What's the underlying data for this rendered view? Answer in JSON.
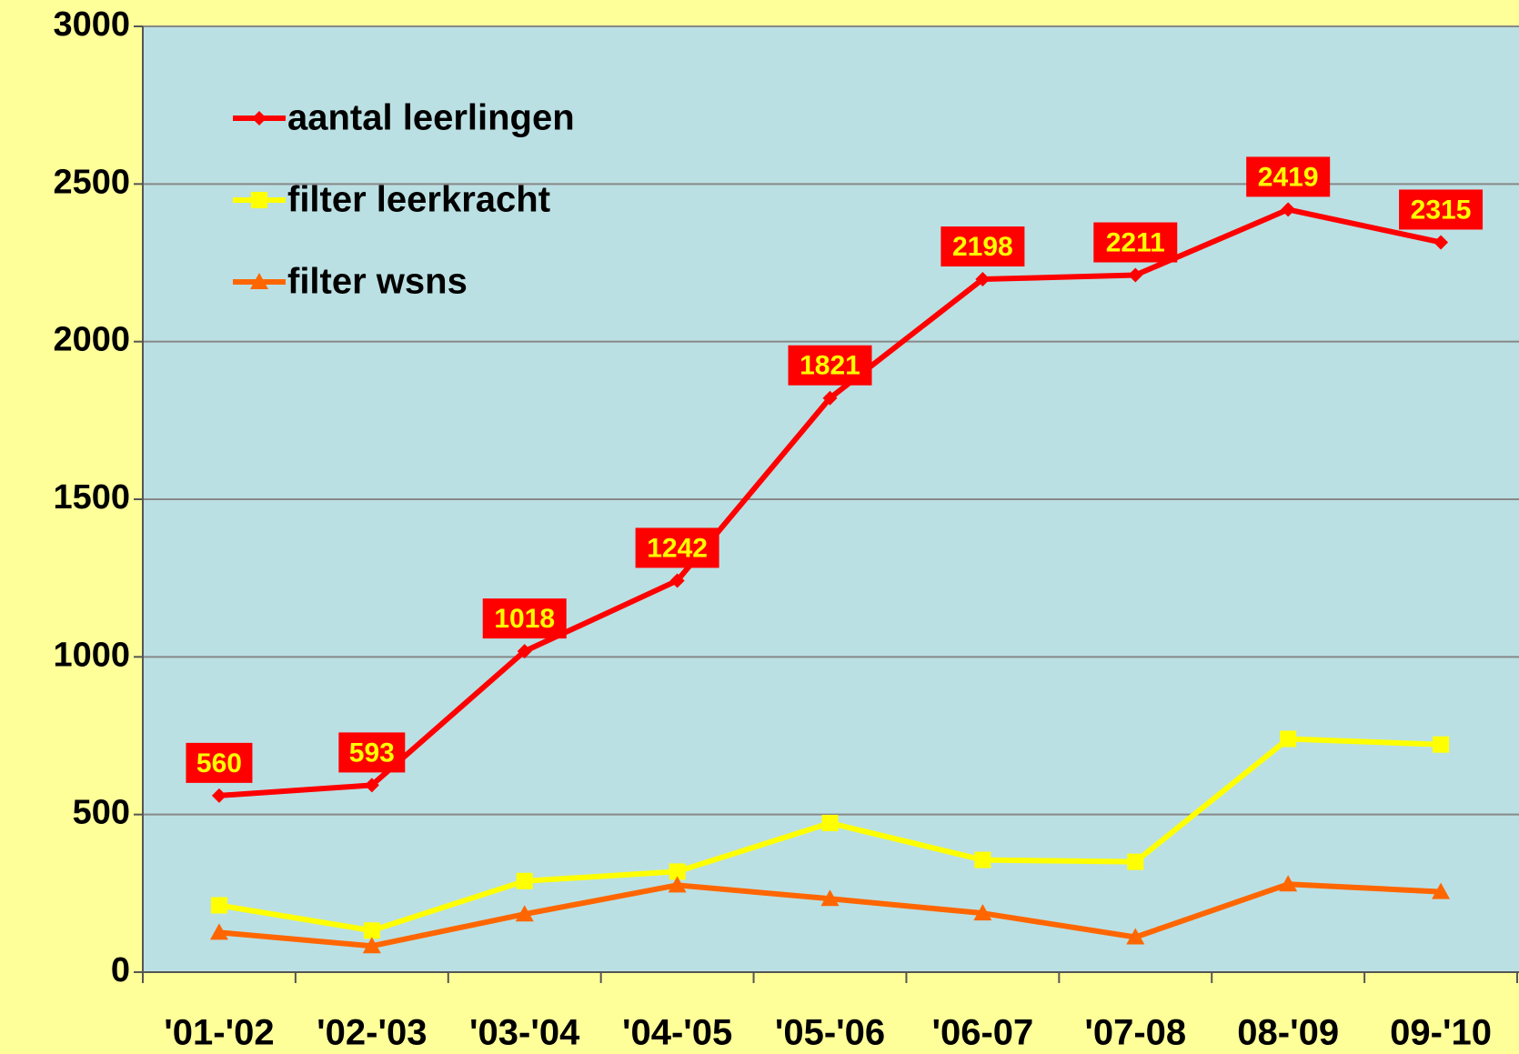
{
  "chart_data": {
    "type": "line",
    "categories": [
      "'01-'02",
      "'02-'03",
      "'03-'04",
      "'04-'05",
      "'05-'06",
      "'06-07",
      "'07-08",
      "08-'09",
      "09-'10"
    ],
    "series": [
      {
        "name": "aantal leerlingen",
        "color": "#ff0000",
        "marker": "diamond",
        "values": [
          560,
          593,
          1018,
          1242,
          1821,
          2198,
          2211,
          2419,
          2315
        ],
        "data_labels": true
      },
      {
        "name": "filter leerkracht",
        "color": "#ffff00",
        "marker": "square",
        "values": [
          212,
          132,
          289,
          319,
          473,
          356,
          350,
          740,
          722
        ]
      },
      {
        "name": "filter wsns",
        "color": "#ff6600",
        "marker": "triangle",
        "values": [
          126,
          83,
          184,
          276,
          233,
          187,
          111,
          279,
          255
        ]
      }
    ],
    "ylim": [
      0,
      3000
    ],
    "yticks": [
      0,
      500,
      1000,
      1500,
      2000,
      2500,
      3000
    ],
    "grid": true,
    "legend": "upper left"
  }
}
